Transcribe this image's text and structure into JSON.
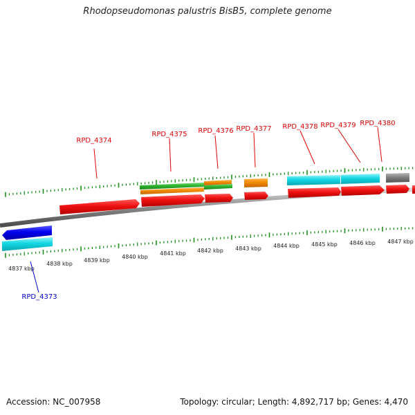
{
  "title": "Rhodopseudomonas palustris BisB5, complete genome",
  "footer": {
    "accession_label": "Accession:",
    "accession": "NC_007958",
    "topology_label": "Topology:",
    "topology": "circular",
    "length_label": "Length:",
    "length": "4,892,717 bp",
    "genes_label": "Genes:",
    "genes": "4,470"
  },
  "colors": {
    "backbone": "#808080",
    "tick": "#1a8f1a",
    "forward_label": "#e00000",
    "reverse_label": "#0000cc",
    "red_feature": "#ee1111",
    "green_feature": "#2fb52f",
    "orange_feature": "#f08c00",
    "cyan_feature": "#12d6e2",
    "blue_feature": "#0000ee",
    "gray_feature": "#808080"
  },
  "scale_labels": [
    "4837 kbp",
    "4838 kbp",
    "4839 kbp",
    "4840 kbp",
    "4841 kbp",
    "4842 kbp",
    "4843 kbp",
    "4844 kbp",
    "4845 kbp",
    "4846 kbp",
    "4847 kbp"
  ],
  "gene_labels": [
    "RPD_4373",
    "RPD_4374",
    "RPD_4375",
    "RPD_4376",
    "RPD_4377",
    "RPD_4378",
    "RPD_4379",
    "RPD_4380"
  ]
}
